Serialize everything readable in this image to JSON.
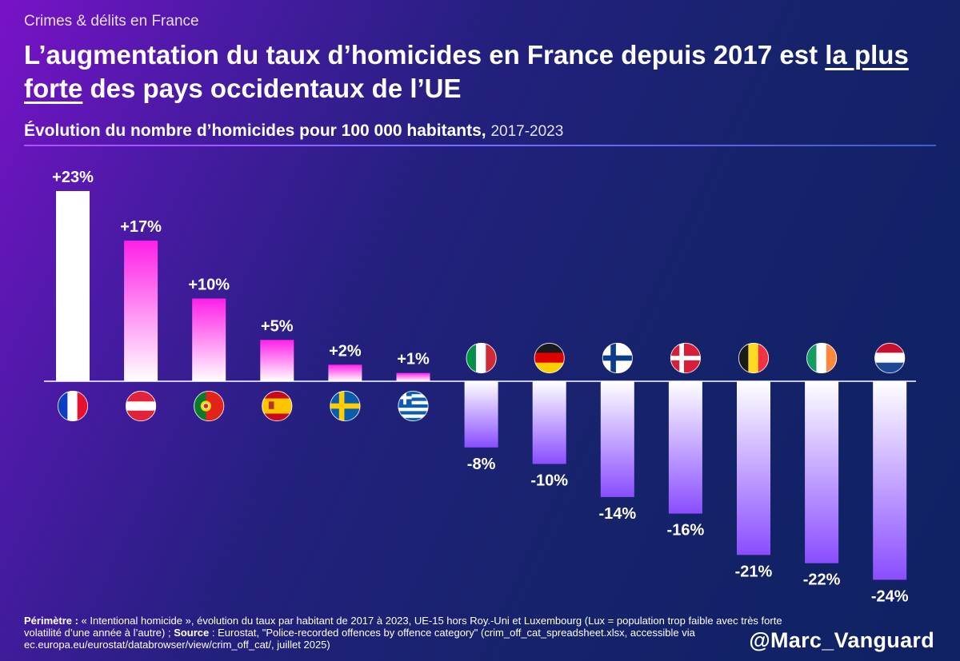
{
  "header": {
    "kicker": "Crimes & délits en France",
    "title_part1": "L’augmentation du taux d’homicides en France depuis 2017 est",
    "title_highlight": "la plus forte",
    "title_part2": "des pays occidentaux de l’UE",
    "subtitle_bold": "Évolution du nombre d’homicides pour 100 000 habitants,",
    "subtitle_years": "2017-2023"
  },
  "footer": {
    "perimetre_label": "Périmètre :",
    "perimetre_text": "« Intentional homicide », évolution du taux par habitant de 2017 à 2023, UE-15 hors Roy.-Uni et Luxembourg (Lux = population trop faible avec très forte volatilité d’une année à l’autre) ;",
    "source_label": "Source",
    "source_text": ": Eurostat, \"Police-recorded offences by offence category\" (crim_off_cat_spreadsheet.xlsx, accessible via ec.europa.eu/eurostat/databrowser/view/crim_off_cat/, juillet 2025)",
    "handle": "@Marc_Vanguard"
  },
  "colors": {
    "positive_top": "#ff20e8",
    "positive_bottom": "#ffffff",
    "negative_top": "#ffffff",
    "negative_bottom": "#8a4dff",
    "france_bar": "#ffffff"
  },
  "chart_data": {
    "type": "bar",
    "title": "Évolution du nombre d’homicides pour 100 000 habitants, 2017-2023",
    "unit": "%",
    "categories": [
      "France",
      "Autriche",
      "Portugal",
      "Espagne",
      "Suède",
      "Grèce",
      "Italie",
      "Allemagne",
      "Finlande",
      "Danemark",
      "Belgique",
      "Irlande",
      "Pays-Bas"
    ],
    "flags": [
      "flag-fr-icon",
      "flag-at-icon",
      "flag-pt-icon",
      "flag-es-icon",
      "flag-se-icon",
      "flag-gr-icon",
      "flag-it-icon",
      "flag-de-icon",
      "flag-fi-icon",
      "flag-dk-icon",
      "flag-be-icon",
      "flag-ie-icon",
      "flag-nl-icon"
    ],
    "values": [
      23,
      17,
      10,
      5,
      2,
      1,
      -8,
      -10,
      -14,
      -16,
      -21,
      -22,
      -24
    ],
    "labels": [
      "+23%",
      "+17%",
      "+10%",
      "+5%",
      "+2%",
      "+1%",
      "-8%",
      "-10%",
      "-14%",
      "-16%",
      "-21%",
      "-22%",
      "-24%"
    ],
    "ylim": [
      -24,
      23
    ],
    "grid": false,
    "legend": "none"
  }
}
